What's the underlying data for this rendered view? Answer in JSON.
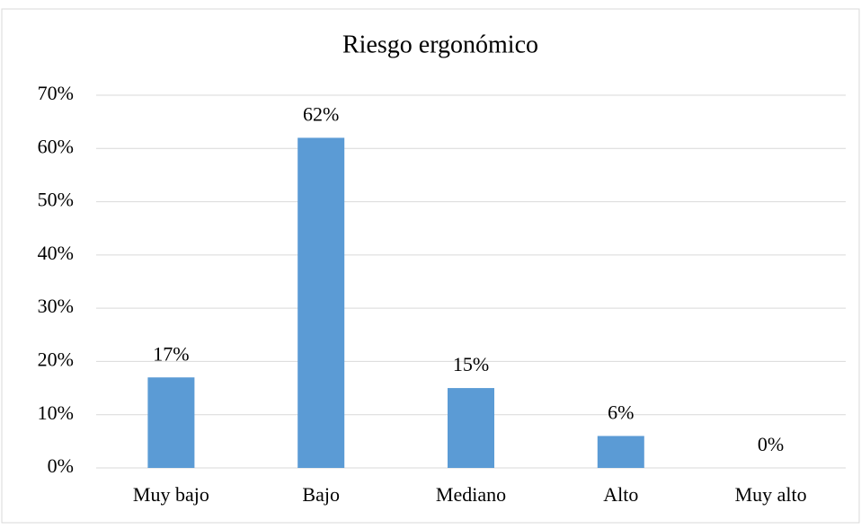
{
  "chart_data": {
    "type": "bar",
    "title": "Riesgo ergonómico",
    "categories": [
      "Muy bajo",
      "Bajo",
      "Mediano",
      "Alto",
      "Muy alto"
    ],
    "values": [
      17,
      62,
      15,
      6,
      0
    ],
    "value_labels": [
      "17%",
      "62%",
      "15%",
      "6%",
      "0%"
    ],
    "color": "#5b9bd5",
    "ylim": [
      0,
      70
    ],
    "yticks": [
      {
        "value": 0,
        "label": "0%"
      },
      {
        "value": 10,
        "label": "10%"
      },
      {
        "value": 20,
        "label": "20%"
      },
      {
        "value": 30,
        "label": "30%"
      },
      {
        "value": 40,
        "label": "40%"
      },
      {
        "value": 50,
        "label": "50%"
      },
      {
        "value": 60,
        "label": "60%"
      },
      {
        "value": 70,
        "label": "70%"
      }
    ],
    "grid": true
  }
}
